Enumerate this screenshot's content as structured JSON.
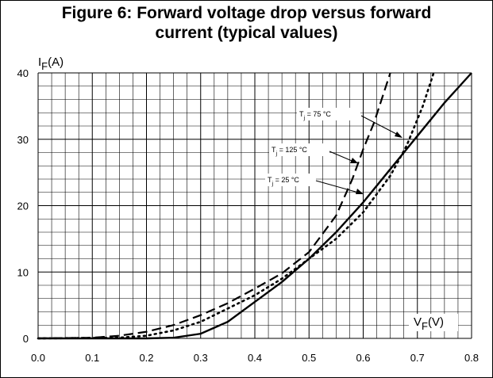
{
  "chart_data": {
    "type": "line",
    "title_line1": "Figure 6: Forward voltage drop versus forward",
    "title_line2": "current (typical values)",
    "ylabel_main": "I",
    "ylabel_sub": "F",
    "ylabel_unit": "(A)",
    "xlabel_main": "V",
    "xlabel_sub": "F",
    "xlabel_unit": "(V)",
    "xlim": [
      0.0,
      0.8
    ],
    "ylim": [
      0,
      40
    ],
    "x_ticks": [
      "0.0",
      "0.1",
      "0.2",
      "0.3",
      "0.4",
      "0.5",
      "0.6",
      "0.7",
      "0.8"
    ],
    "y_ticks": [
      "0",
      "10",
      "20",
      "30",
      "40"
    ],
    "grid": true,
    "series": [
      {
        "name": "Tj = 25 °C",
        "label_main": "T",
        "label_sub": "j",
        "label_rest": " = 25 °C",
        "style": "solid",
        "points": [
          [
            0.0,
            0
          ],
          [
            0.2,
            0
          ],
          [
            0.25,
            0.1
          ],
          [
            0.3,
            0.7
          ],
          [
            0.35,
            2.5
          ],
          [
            0.4,
            5.5
          ],
          [
            0.45,
            8.5
          ],
          [
            0.5,
            12
          ],
          [
            0.55,
            16
          ],
          [
            0.6,
            20.5
          ],
          [
            0.65,
            25.5
          ],
          [
            0.7,
            30.5
          ],
          [
            0.75,
            35.5
          ],
          [
            0.8,
            40
          ]
        ]
      },
      {
        "name": "Tj = 75 °C",
        "label_main": "T",
        "label_sub": "j",
        "label_rest": " = 75 °C",
        "style": "dotted",
        "points": [
          [
            0.0,
            0
          ],
          [
            0.15,
            0.1
          ],
          [
            0.2,
            0.4
          ],
          [
            0.25,
            1.2
          ],
          [
            0.3,
            2.5
          ],
          [
            0.35,
            4.5
          ],
          [
            0.4,
            6.5
          ],
          [
            0.45,
            9
          ],
          [
            0.5,
            12
          ],
          [
            0.55,
            15
          ],
          [
            0.6,
            19
          ],
          [
            0.65,
            24.5
          ],
          [
            0.68,
            29
          ],
          [
            0.71,
            35
          ],
          [
            0.73,
            40
          ]
        ]
      },
      {
        "name": "Tj = 125 °C",
        "label_main": "T",
        "label_sub": "j",
        "label_rest": " = 125 °C",
        "style": "dashed",
        "points": [
          [
            0.0,
            0
          ],
          [
            0.1,
            0.1
          ],
          [
            0.15,
            0.4
          ],
          [
            0.2,
            1
          ],
          [
            0.25,
            2
          ],
          [
            0.3,
            3.5
          ],
          [
            0.35,
            5.3
          ],
          [
            0.4,
            7.5
          ],
          [
            0.45,
            9.8
          ],
          [
            0.5,
            13
          ],
          [
            0.55,
            18.5
          ],
          [
            0.58,
            24
          ],
          [
            0.6,
            28.5
          ],
          [
            0.62,
            32.5
          ],
          [
            0.65,
            40
          ]
        ]
      }
    ]
  }
}
